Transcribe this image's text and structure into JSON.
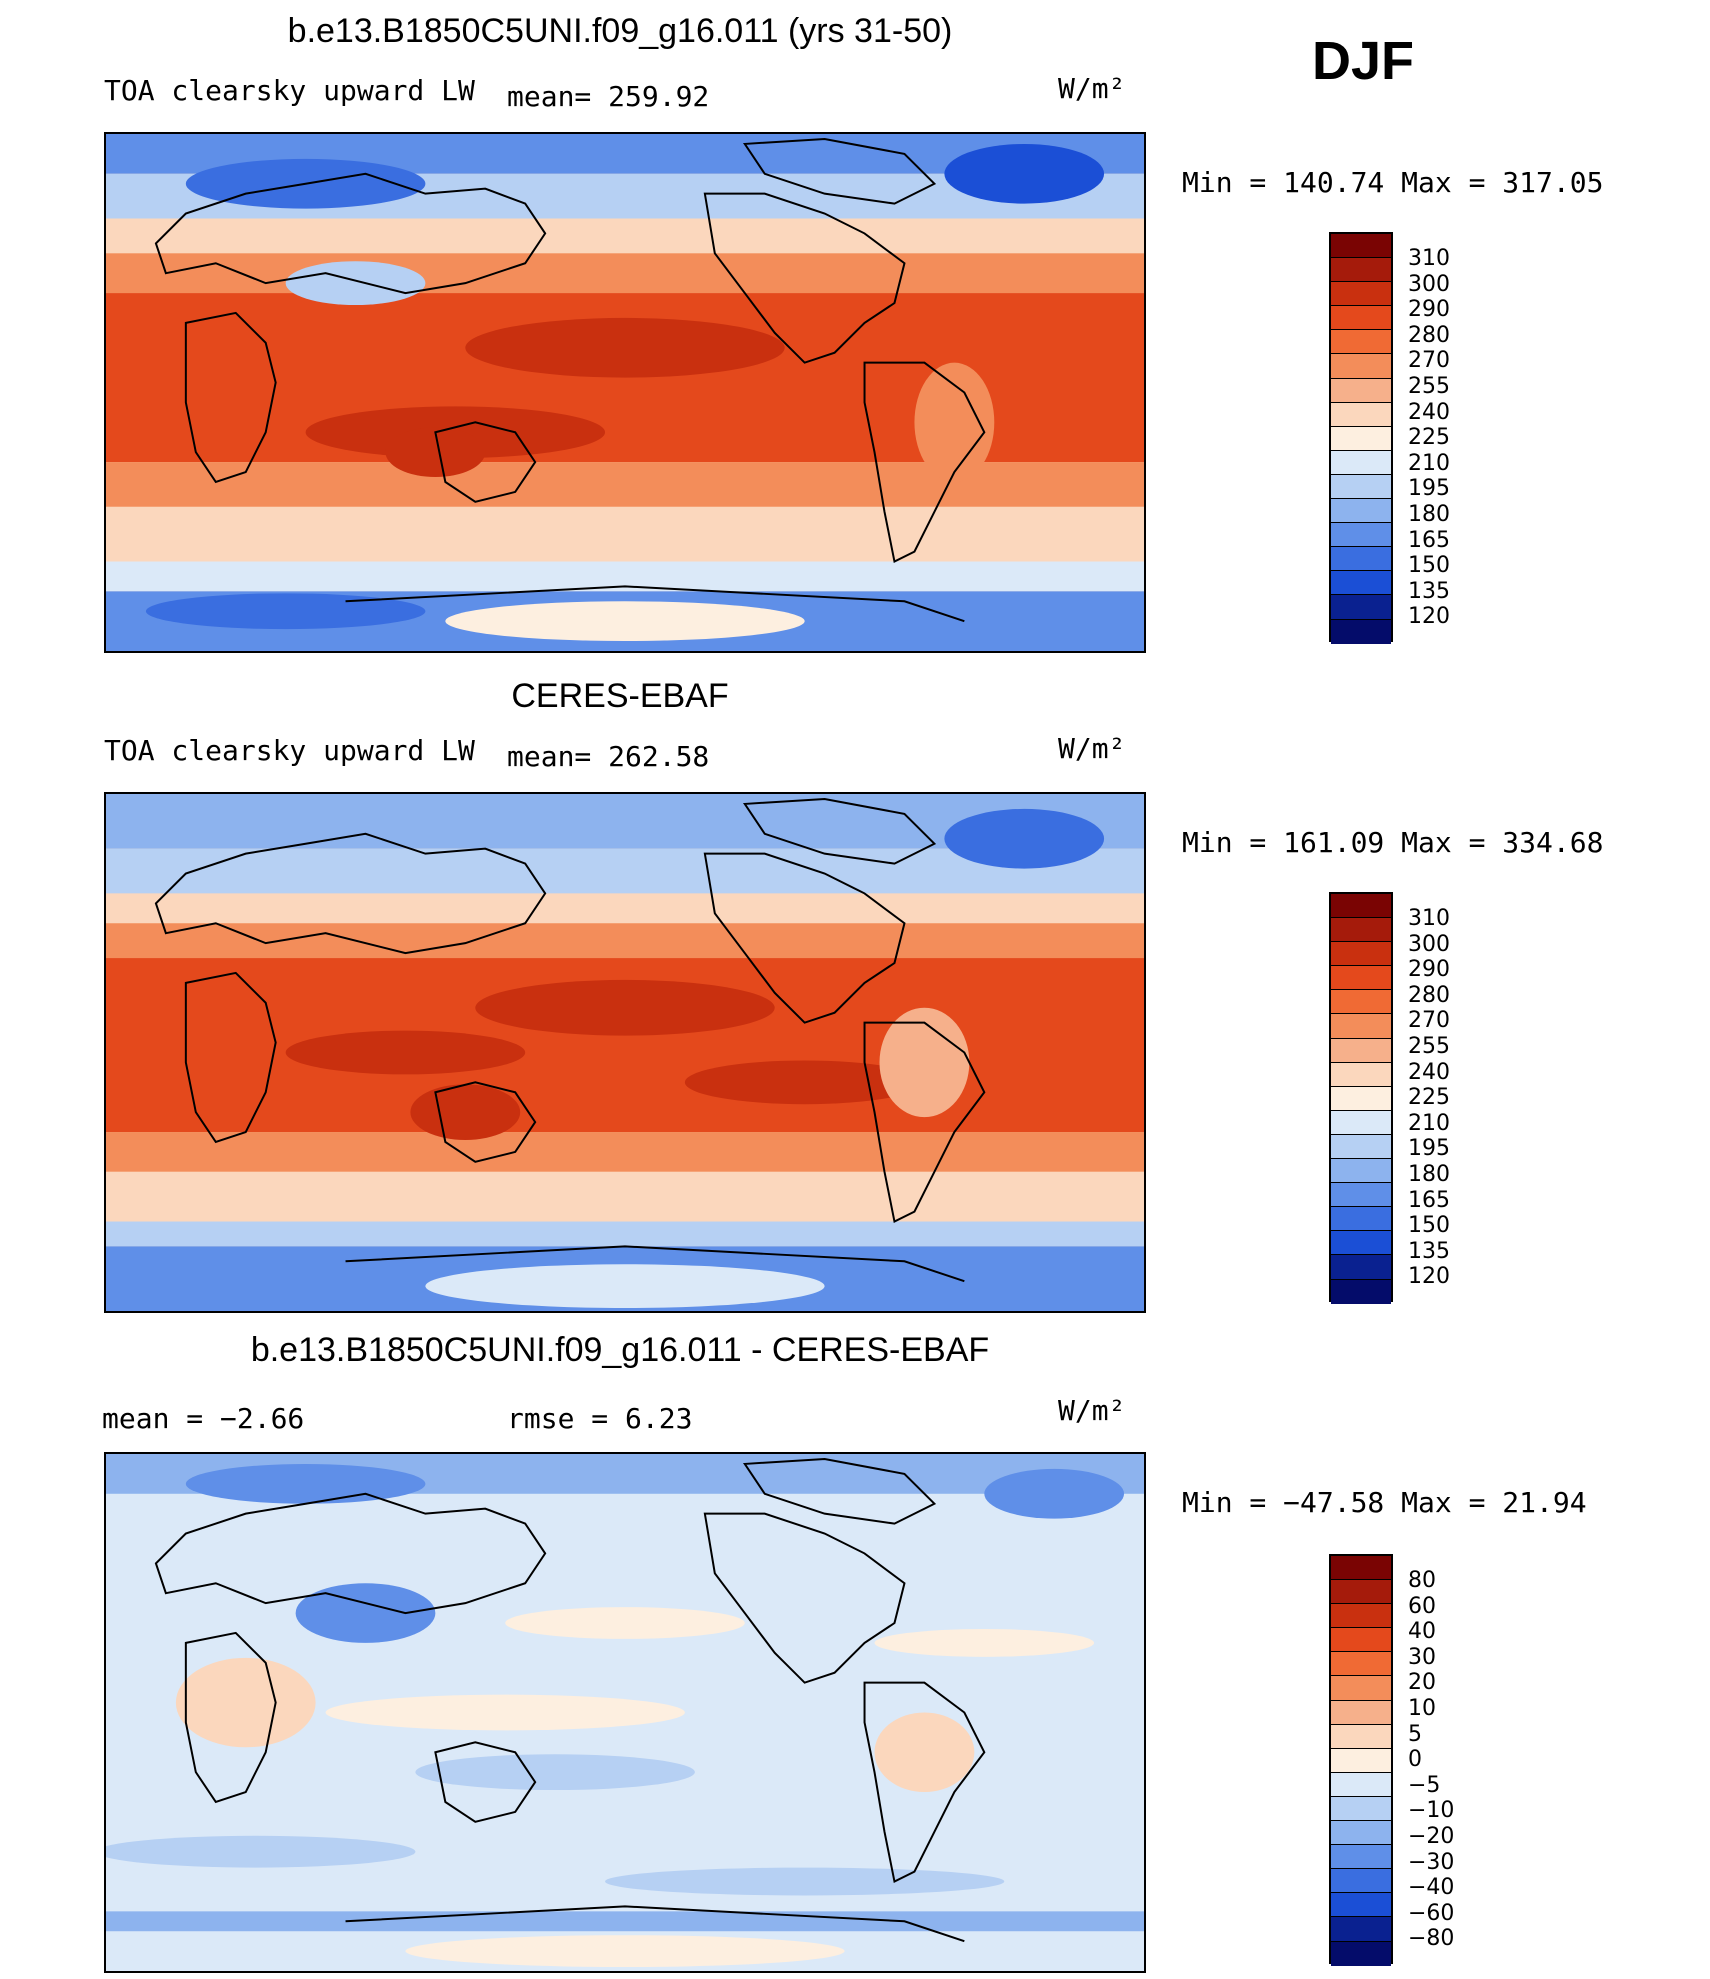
{
  "season": "DJF",
  "panels": [
    {
      "title": "b.e13.B1850C5UNI.f09_g16.011 (yrs 31-50)",
      "left_label": "TOA clearsky upward LW",
      "stat_label": "mean= 259.92",
      "units": "W/m²",
      "minmax": "Min = 140.74 Max = 317.05",
      "colorbar_labels": [
        "310",
        "300",
        "290",
        "280",
        "270",
        "255",
        "240",
        "225",
        "210",
        "195",
        "180",
        "165",
        "150",
        "135",
        "120"
      ]
    },
    {
      "title": "CERES-EBAF",
      "left_label": "TOA clearsky upward LW",
      "stat_label": "mean= 262.58",
      "units": "W/m²",
      "minmax": "Min = 161.09 Max = 334.68",
      "colorbar_labels": [
        "310",
        "300",
        "290",
        "280",
        "270",
        "255",
        "240",
        "225",
        "210",
        "195",
        "180",
        "165",
        "150",
        "135",
        "120"
      ]
    },
    {
      "title": "b.e13.B1850C5UNI.f09_g16.011 - CERES-EBAF",
      "left_label": "mean =   −2.66",
      "stat_label": "rmse =    6.23",
      "units": "W/m²",
      "minmax": "Min = −47.58 Max =  21.94",
      "colorbar_labels": [
        "80",
        "60",
        "40",
        "30",
        "20",
        "10",
        "5",
        "0",
        "−5",
        "−10",
        "−20",
        "−30",
        "−40",
        "−60",
        "−80"
      ]
    }
  ],
  "colors": {
    "scale": [
      "#7a0403",
      "#a51b0b",
      "#c9300f",
      "#e4491c",
      "#f06a34",
      "#f38d5a",
      "#f6b08b",
      "#fbd7bd",
      "#fdefe0",
      "#dbe9f8",
      "#b6d0f3",
      "#8db3ee",
      "#5f8fe8",
      "#3a6ee0",
      "#1b4fd6",
      "#0d36b8",
      "#0a2190",
      "#040c6a"
    ],
    "land_outline": "#000000"
  }
}
